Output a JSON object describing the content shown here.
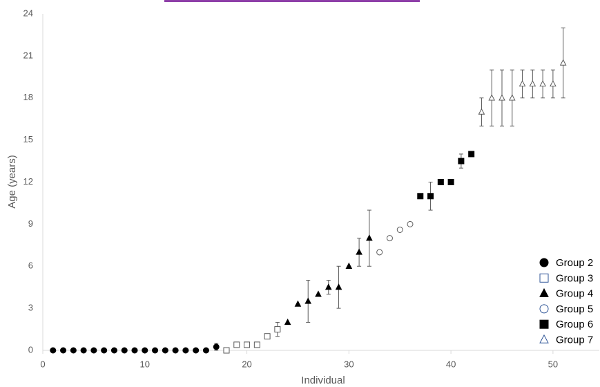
{
  "chart_data": {
    "type": "scatter",
    "xlabel": "Individual",
    "ylabel": "Age (years)",
    "xlim": [
      0,
      54
    ],
    "xticks": [
      0,
      10,
      20,
      30,
      40,
      50
    ],
    "ylim": [
      0,
      24
    ],
    "yticks": [
      0,
      3,
      6,
      9,
      12,
      15,
      18,
      21,
      24
    ],
    "grid": false,
    "legend": "lower right",
    "series": [
      {
        "name": "Group 2",
        "color": "#000000",
        "marker": "circle",
        "filled": true,
        "x": [
          1,
          2,
          3,
          4,
          5,
          6,
          7,
          8,
          9,
          10,
          11,
          12,
          13,
          14,
          15,
          16,
          17
        ],
        "values": [
          0,
          0,
          0,
          0,
          0,
          0,
          0,
          0,
          0,
          0,
          0,
          0,
          0,
          0,
          0,
          0,
          0.25
        ],
        "errors": [
          null,
          null,
          null,
          null,
          null,
          null,
          null,
          null,
          null,
          null,
          null,
          null,
          null,
          null,
          null,
          null,
          0.25
        ]
      },
      {
        "name": "Group 3",
        "color": "#000000",
        "marker": "square",
        "filled": false,
        "x": [
          18,
          19,
          20,
          21,
          22,
          23
        ],
        "values": [
          0,
          0.4,
          0.4,
          0.4,
          1,
          1.5
        ],
        "errors": [
          null,
          null,
          null,
          null,
          null,
          0.5
        ]
      },
      {
        "name": "Group 4",
        "color": "#000000",
        "marker": "triangle",
        "filled": true,
        "x": [
          24,
          25,
          26,
          27,
          28,
          29,
          30,
          31,
          32
        ],
        "values": [
          2,
          3.3,
          3.5,
          4,
          4.5,
          4.5,
          6,
          7,
          8
        ],
        "errors": [
          null,
          null,
          1.5,
          null,
          0.5,
          1.5,
          null,
          1,
          2
        ]
      },
      {
        "name": "Group 5",
        "color": "#000000",
        "marker": "circle",
        "filled": false,
        "x": [
          33,
          34,
          35,
          36
        ],
        "values": [
          7,
          8,
          8.6,
          9
        ],
        "errors": [
          null,
          null,
          null,
          null
        ]
      },
      {
        "name": "Group 6",
        "color": "#000000",
        "marker": "square",
        "filled": true,
        "x": [
          37,
          38,
          39,
          40,
          41,
          42
        ],
        "values": [
          11,
          11,
          12,
          12,
          13.5,
          14
        ],
        "errors": [
          null,
          1,
          null,
          null,
          0.5,
          null
        ]
      },
      {
        "name": "Group 7",
        "color": "#000000",
        "marker": "triangle",
        "filled": false,
        "x": [
          43,
          44,
          45,
          46,
          47,
          48,
          49,
          50,
          51
        ],
        "values": [
          17,
          18,
          18,
          18,
          19,
          19,
          19,
          19,
          20.5
        ],
        "errors": [
          1,
          2,
          2,
          2,
          1,
          1,
          1,
          1,
          2.5
        ]
      }
    ]
  }
}
